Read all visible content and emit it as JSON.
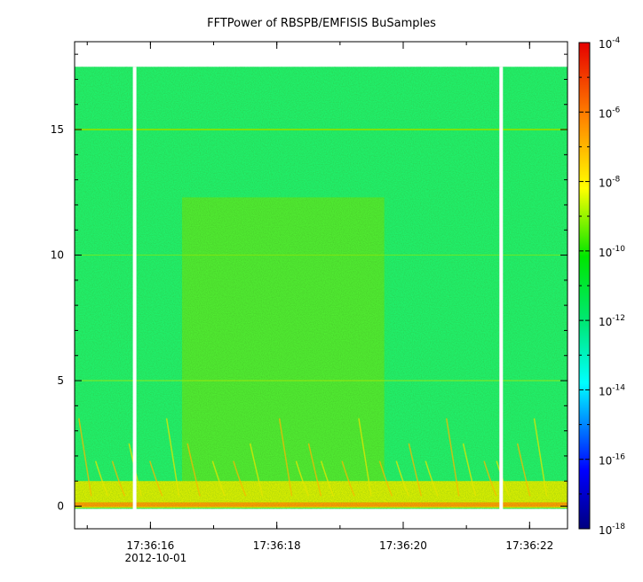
{
  "chart_data": {
    "type": "heatmap",
    "title": "FFTPower of RBSPB/EMFISIS  BuSamples",
    "xlabel": "",
    "ylabel": "",
    "x_date_label": "2012-10-01",
    "x_ticks": [
      {
        "value": "17:36:16",
        "label": "17:36:16"
      },
      {
        "value": "17:36:18",
        "label": "17:36:18"
      },
      {
        "value": "17:36:20",
        "label": "17:36:20"
      },
      {
        "value": "17:36:22",
        "label": "17:36:22"
      }
    ],
    "xlim": [
      "17:36:14.8",
      "17:36:22.6"
    ],
    "y_ticks": [
      0,
      5,
      10,
      15
    ],
    "ylim": [
      -0.9,
      18.5
    ],
    "y_data_max": 17.5,
    "data_gaps": [
      {
        "time": "17:36:15.75"
      },
      {
        "time": "17:36:21.55"
      }
    ],
    "colorbar": {
      "scale": "log",
      "colormap": "rainbow",
      "range": [
        1e-18,
        0.0001
      ],
      "tick_exponents": [
        "-4",
        "-6",
        "-8",
        "-10",
        "-12",
        "-14",
        "-16",
        "-18"
      ],
      "base_label": "10"
    },
    "features": {
      "background_level": 1e-12,
      "elevated_band_level": 1e-11,
      "elevated_band_ylim": [
        0,
        12.3
      ],
      "low_frequency_level": 1e-08,
      "low_frequency_ylim": [
        0,
        1.0
      ]
    },
    "grid": false
  }
}
